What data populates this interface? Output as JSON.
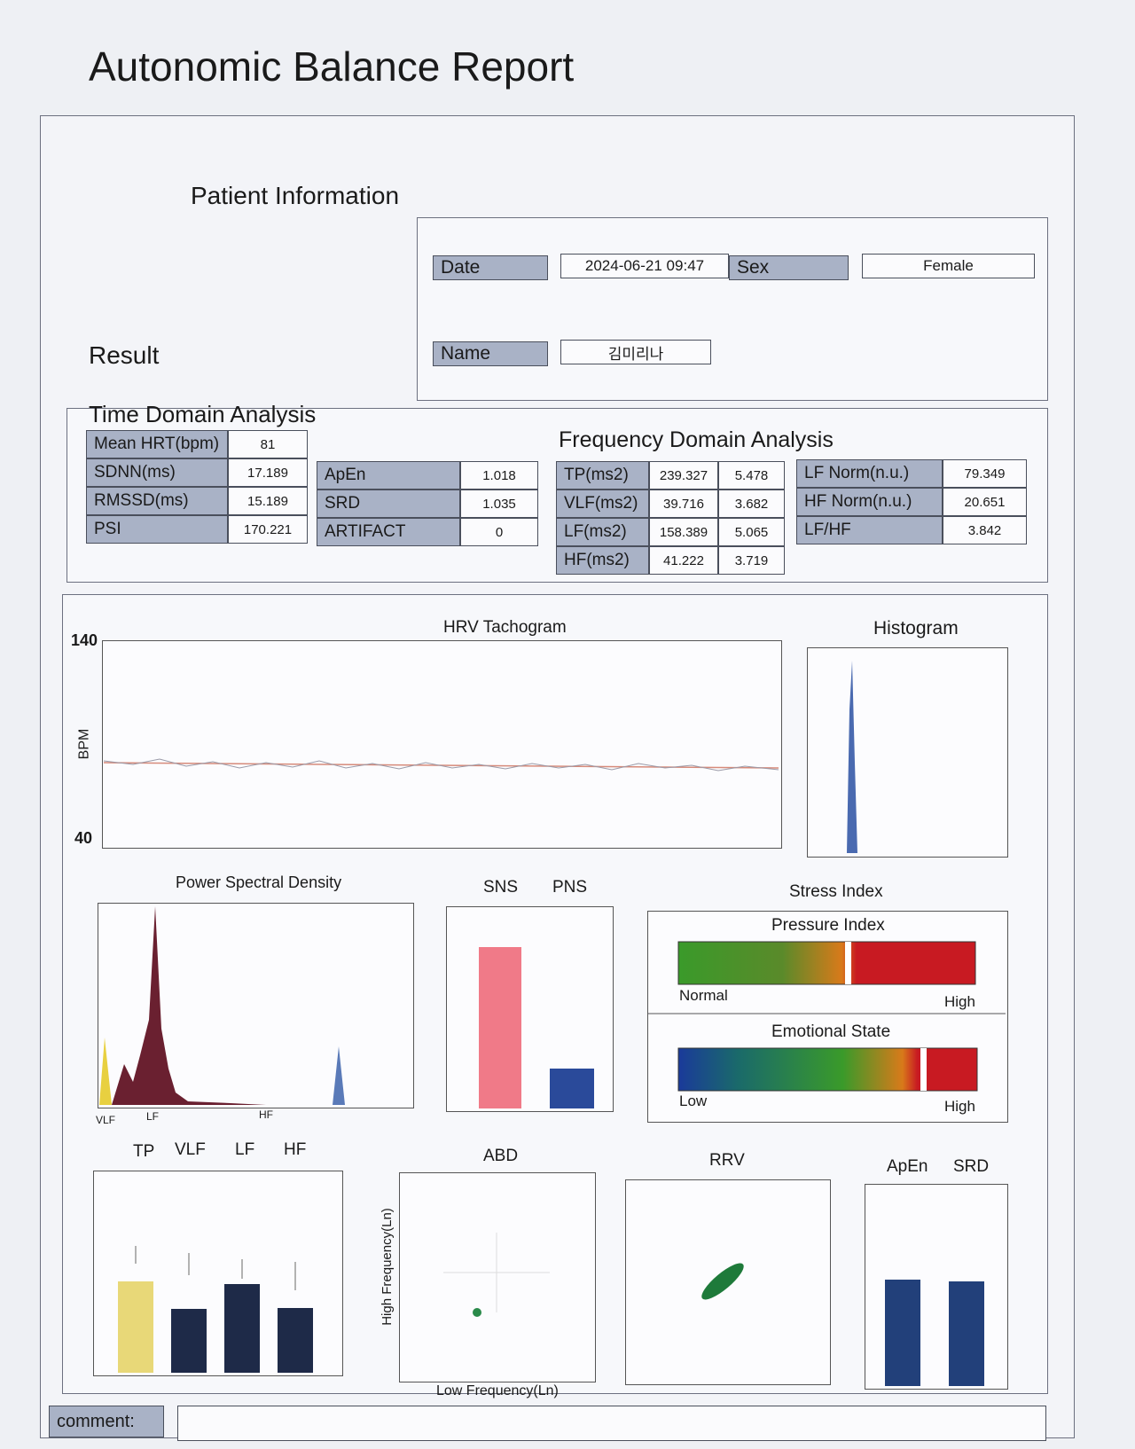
{
  "header": {
    "title": "Autonomic Balance Report"
  },
  "patient_info": {
    "title": "Patient Information",
    "fields": [
      {
        "label": "Date",
        "value": "2024-06-21 09:47"
      },
      {
        "label": "Sex",
        "value": "Female"
      },
      {
        "label": "Name",
        "value": "김미리나"
      }
    ]
  },
  "result": {
    "title": "Result",
    "time_domain": {
      "title": "Time Domain Analysis",
      "rows": [
        [
          "Mean HRT(bpm)",
          81
        ],
        [
          "SDNN(ms)",
          17.189
        ],
        [
          "RMSSD(ms)",
          15.189
        ],
        [
          "PSI",
          170.221
        ]
      ]
    },
    "complexity": {
      "rows": [
        [
          "ApEn",
          1.018
        ],
        [
          "SRD",
          1.035
        ],
        [
          "ARTIFACT",
          0
        ]
      ]
    },
    "frequency_domain": {
      "title": "Frequency Domain Analysis",
      "rows": [
        [
          "TP(ms2)",
          239.327,
          5.478
        ],
        [
          "VLF(ms2)",
          39.716,
          3.682
        ],
        [
          "LF(ms2)",
          158.389,
          5.065
        ],
        [
          "HF(ms2)",
          41.222,
          3.719
        ]
      ],
      "norm_rows": [
        [
          "LF Norm(n.u.)",
          79.349
        ],
        [
          "HF Norm(n.u.)",
          20.651
        ],
        [
          "LF/HF",
          3.842
        ]
      ]
    }
  },
  "graphs": {
    "tachogram": {
      "title": "HRV Tachogram",
      "y_label": "BPM",
      "y_max": 140,
      "y_min": 40
    },
    "histogram": {
      "title": "Histogram"
    },
    "psd": {
      "title": "Power Spectral Density",
      "bands": [
        "VLF",
        "LF",
        "HF"
      ]
    },
    "balance": {
      "labels": [
        "SNS",
        "PNS"
      ]
    },
    "stress": {
      "title": "Stress Index",
      "pressure": {
        "title": "Pressure Index",
        "low": "Normal",
        "high": "High"
      },
      "emotion": {
        "title": "Emotional State",
        "low": "Low",
        "high": "High"
      }
    },
    "power_bars": {
      "labels": [
        "TP",
        "VLF",
        "LF",
        "HF"
      ]
    },
    "abd": {
      "title": "ABD",
      "y_label": "High Frequency(Ln)",
      "x_label": "Low Frequency(Ln)"
    },
    "rrv": {
      "title": "RRV"
    },
    "complexity_bars": {
      "labels": [
        "ApEn",
        "SRD"
      ]
    }
  },
  "comment": {
    "label": "comment:"
  }
}
